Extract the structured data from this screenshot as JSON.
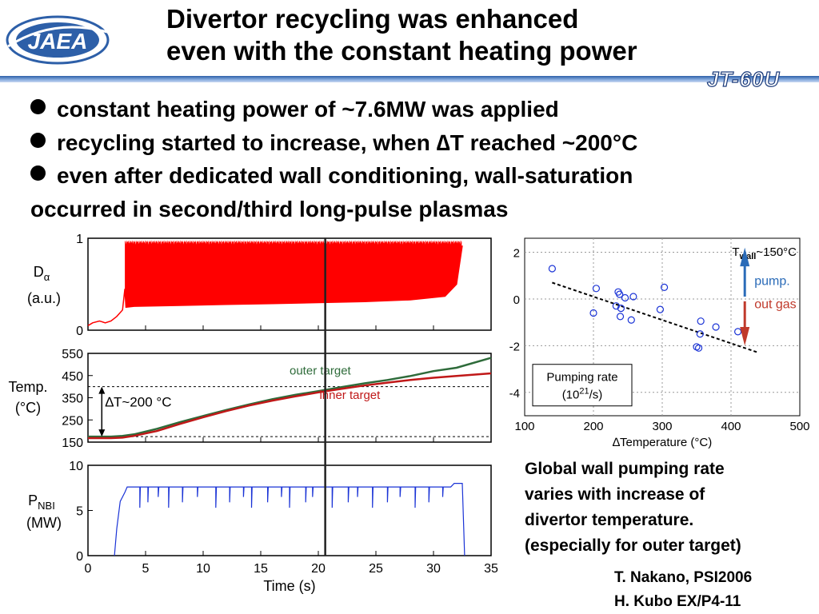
{
  "slide": {
    "title_line1": "Divertor recycling was enhanced",
    "title_line2": "even with the constant heating power",
    "logo_text": "JAEA",
    "device_label": "JT-60U",
    "bullets": [
      "constant heating power of ~7.6MW was applied",
      "recycling started to increase, when ∆T reached ~200°C",
      "even after dedicated wall conditioning, wall-saturation"
    ],
    "bullet_continuation": "occurred in second/third long-pulse plasmas",
    "caption_lines": [
      "Global wall pumping rate",
      "varies with increase of",
      "divertor temperature.",
      "(especially for outer target)"
    ],
    "credits": [
      "T. Nakano, PSI2006",
      "H. Kubo EX/P4-11"
    ],
    "colors": {
      "accent_blue": "#2d5fa8",
      "red_trace": "#ff0000",
      "green_trace": "#2e6b3a",
      "dark_red_trace": "#c01818",
      "blue_trace": "#1a33d6",
      "pump_arrow": "#2a6bb8",
      "outgas_arrow": "#c0392b"
    }
  },
  "chart_data": [
    {
      "type": "line",
      "panel": "D-alpha",
      "ylabel_main": "D",
      "ylabel_sub": "α",
      "ylabel_unit": "(a.u.)",
      "yticks": [
        "1",
        "0"
      ],
      "ylim": [
        0,
        1
      ],
      "xlim": [
        0,
        35
      ],
      "series": [
        {
          "x": [
            0,
            0.4,
            1,
            1.5,
            2,
            2.5,
            3,
            3.2,
            3.3,
            4,
            8,
            12,
            16,
            20,
            24,
            28,
            31,
            32,
            32.5
          ],
          "y": [
            0.05,
            0.08,
            0.1,
            0.08,
            0.1,
            0.15,
            0.22,
            0.45,
            0.25,
            0.26,
            0.27,
            0.28,
            0.29,
            0.3,
            0.31,
            0.33,
            0.37,
            0.5,
            0.92
          ]
        }
      ],
      "elm_band": {
        "x": [
          3.2,
          32.5
        ],
        "max": 0.98
      }
    },
    {
      "type": "line",
      "panel": "Temperature",
      "ylabel": "Temp.",
      "ylabel_unit": "(°C)",
      "yticks": [
        "550",
        "450",
        "350",
        "250",
        "150"
      ],
      "ylim": [
        150,
        550
      ],
      "xlim": [
        0,
        35
      ],
      "series": [
        {
          "name": "outer target",
          "x": [
            0,
            2,
            3,
            4,
            6,
            8,
            10,
            12,
            14,
            16,
            18,
            20,
            22,
            24,
            26,
            28,
            30,
            32,
            35
          ],
          "y": [
            175,
            175,
            178,
            185,
            210,
            240,
            268,
            295,
            320,
            343,
            363,
            380,
            398,
            415,
            430,
            448,
            470,
            485,
            530
          ]
        },
        {
          "name": "inner target",
          "x": [
            0,
            2,
            3,
            4,
            6,
            8,
            10,
            12,
            14,
            16,
            18,
            20,
            22,
            24,
            26,
            28,
            30,
            32,
            35
          ],
          "y": [
            168,
            168,
            170,
            178,
            200,
            232,
            262,
            290,
            315,
            337,
            356,
            374,
            390,
            405,
            418,
            430,
            440,
            448,
            460
          ]
        }
      ],
      "reference_lines": [
        400,
        175
      ],
      "annotation": "∆T~200 °C"
    },
    {
      "type": "line",
      "panel": "NBI power",
      "ylabel_main": "P",
      "ylabel_sub": "NBI",
      "ylabel_unit": "(MW)",
      "yticks": [
        "10",
        "5",
        "0"
      ],
      "ylim": [
        0,
        10
      ],
      "xlim": [
        0,
        35
      ],
      "xlabel": "Time (s)",
      "xticks": [
        "0",
        "5",
        "10",
        "15",
        "20",
        "25",
        "30",
        "35"
      ],
      "series": [
        {
          "x": [
            2.3,
            2.5,
            2.8,
            3.2,
            3.4,
            4,
            10,
            20,
            25,
            30,
            31.5,
            31.8,
            32.5,
            32.7
          ],
          "y": [
            0,
            3,
            6,
            7,
            7.6,
            7.6,
            7.6,
            7.6,
            7.6,
            7.6,
            7.6,
            8,
            8,
            0
          ]
        }
      ],
      "dips_at": [
        4.5,
        5.2,
        6.1,
        7,
        8.2,
        9.5,
        11.1,
        12.3,
        13.5,
        14.2,
        15.6,
        16.8,
        17.5,
        18.9,
        19.5,
        21.2,
        22.6,
        23.4,
        24.7,
        26,
        27.1,
        28.4,
        29.6,
        30.8
      ],
      "time_marker_x": 20.6
    },
    {
      "type": "scatter",
      "panel": "Pumping rate",
      "legend_label_line1": "Pumping rate",
      "legend_label_line2": "(10",
      "legend_label_sup": "21",
      "legend_label_end": "/s)",
      "xlabel": "∆Temperature (°C)",
      "xticks": [
        "100",
        "200",
        "300",
        "400",
        "500"
      ],
      "yticks": [
        "2",
        "0",
        "-2",
        "-4"
      ],
      "xlim": [
        100,
        500
      ],
      "ylim": [
        -5,
        2.6
      ],
      "twall_T": "T",
      "twall_sub": "wall",
      "twall_rest": "~150°C",
      "pump_label": "pump.",
      "outgas_label": "out gas",
      "points": [
        [
          140,
          1.3
        ],
        [
          200,
          -0.6
        ],
        [
          204,
          0.45
        ],
        [
          233,
          -0.3
        ],
        [
          236,
          0.3
        ],
        [
          238,
          0.2
        ],
        [
          240,
          -0.4
        ],
        [
          239,
          -0.75
        ],
        [
          246,
          0.05
        ],
        [
          255,
          -0.9
        ],
        [
          258,
          0.1
        ],
        [
          297,
          -0.45
        ],
        [
          303,
          0.5
        ],
        [
          350,
          -2.05
        ],
        [
          353,
          -2.1
        ],
        [
          355,
          -1.5
        ],
        [
          356,
          -0.95
        ],
        [
          378,
          -1.2
        ],
        [
          410,
          -1.4
        ]
      ],
      "trend": [
        [
          140,
          0.7
        ],
        [
          440,
          -2.3
        ]
      ]
    }
  ]
}
